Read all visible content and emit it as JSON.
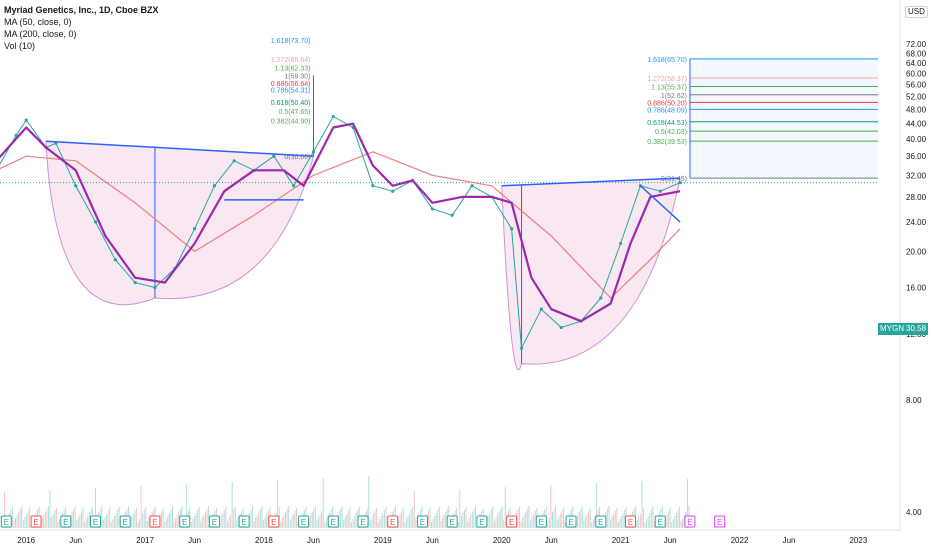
{
  "chart_data": {
    "type": "candlestick",
    "title": "Myriad Genetics, Inc., 1D, Cboe BZX",
    "indicators": [
      "MA (50, close, 0)",
      "MA (200, close, 0)",
      "Vol (10)"
    ],
    "currency": "USD",
    "symbol": "MYGN",
    "last_price": "30.58",
    "y_scale": "log",
    "y_ticks": [
      "4.00",
      "8.00",
      "12.00",
      "16.00",
      "20.00",
      "24.00",
      "28.00",
      "32.00",
      "36.00",
      "40.00",
      "44.00",
      "48.00",
      "52.00",
      "56.00",
      "60.00",
      "64.00",
      "68.00",
      "72.00"
    ],
    "x_ticks": [
      "2016",
      "Jun",
      "2017",
      "Jun",
      "2018",
      "Jun",
      "2019",
      "Jun",
      "2020",
      "Jun",
      "2021",
      "Jun",
      "2022",
      "Jun",
      "2023"
    ],
    "price_series": [
      {
        "date": "2015-10",
        "value": 33
      },
      {
        "date": "2015-12",
        "value": 41
      },
      {
        "date": "2016-01",
        "value": 45
      },
      {
        "date": "2016-03",
        "value": 38
      },
      {
        "date": "2016-04",
        "value": 39
      },
      {
        "date": "2016-06",
        "value": 30
      },
      {
        "date": "2016-08",
        "value": 24
      },
      {
        "date": "2016-10",
        "value": 19
      },
      {
        "date": "2016-12",
        "value": 16.5
      },
      {
        "date": "2017-02",
        "value": 16
      },
      {
        "date": "2017-04",
        "value": 18
      },
      {
        "date": "2017-06",
        "value": 23
      },
      {
        "date": "2017-08",
        "value": 30
      },
      {
        "date": "2017-10",
        "value": 35
      },
      {
        "date": "2017-12",
        "value": 33
      },
      {
        "date": "2018-02",
        "value": 36
      },
      {
        "date": "2018-04",
        "value": 30
      },
      {
        "date": "2018-06",
        "value": 37
      },
      {
        "date": "2018-08",
        "value": 46
      },
      {
        "date": "2018-10",
        "value": 43
      },
      {
        "date": "2018-12",
        "value": 30
      },
      {
        "date": "2019-02",
        "value": 29
      },
      {
        "date": "2019-04",
        "value": 31
      },
      {
        "date": "2019-06",
        "value": 26
      },
      {
        "date": "2019-08",
        "value": 25
      },
      {
        "date": "2019-10",
        "value": 30
      },
      {
        "date": "2019-12",
        "value": 28
      },
      {
        "date": "2020-02",
        "value": 23
      },
      {
        "date": "2020-03",
        "value": 11
      },
      {
        "date": "2020-05",
        "value": 14
      },
      {
        "date": "2020-07",
        "value": 12.5
      },
      {
        "date": "2020-09",
        "value": 13
      },
      {
        "date": "2020-11",
        "value": 15
      },
      {
        "date": "2021-01",
        "value": 21
      },
      {
        "date": "2021-03",
        "value": 30
      },
      {
        "date": "2021-05",
        "value": 29
      },
      {
        "date": "2021-07",
        "value": 30.58
      }
    ],
    "ma50_series": [
      {
        "date": "2015-10",
        "value": 35
      },
      {
        "date": "2016-01",
        "value": 43
      },
      {
        "date": "2016-03",
        "value": 38
      },
      {
        "date": "2016-06",
        "value": 33
      },
      {
        "date": "2016-09",
        "value": 22
      },
      {
        "date": "2016-12",
        "value": 17
      },
      {
        "date": "2017-03",
        "value": 16.5
      },
      {
        "date": "2017-06",
        "value": 21
      },
      {
        "date": "2017-09",
        "value": 29
      },
      {
        "date": "2017-12",
        "value": 33
      },
      {
        "date": "2018-03",
        "value": 33
      },
      {
        "date": "2018-05",
        "value": 30
      },
      {
        "date": "2018-08",
        "value": 43
      },
      {
        "date": "2018-10",
        "value": 44
      },
      {
        "date": "2018-12",
        "value": 34
      },
      {
        "date": "2019-02",
        "value": 30
      },
      {
        "date": "2019-04",
        "value": 31
      },
      {
        "date": "2019-06",
        "value": 27
      },
      {
        "date": "2019-09",
        "value": 28
      },
      {
        "date": "2019-12",
        "value": 28
      },
      {
        "date": "2020-02",
        "value": 27
      },
      {
        "date": "2020-04",
        "value": 17
      },
      {
        "date": "2020-06",
        "value": 14
      },
      {
        "date": "2020-09",
        "value": 13
      },
      {
        "date": "2020-12",
        "value": 14.5
      },
      {
        "date": "2021-02",
        "value": 21
      },
      {
        "date": "2021-04",
        "value": 28
      },
      {
        "date": "2021-07",
        "value": 29
      }
    ],
    "ma200_series": [
      {
        "date": "2015-10",
        "value": 33
      },
      {
        "date": "2016-01",
        "value": 36
      },
      {
        "date": "2016-06",
        "value": 35
      },
      {
        "date": "2016-12",
        "value": 27
      },
      {
        "date": "2017-06",
        "value": 20
      },
      {
        "date": "2017-12",
        "value": 25
      },
      {
        "date": "2018-06",
        "value": 32
      },
      {
        "date": "2018-12",
        "value": 37
      },
      {
        "date": "2019-06",
        "value": 32
      },
      {
        "date": "2019-12",
        "value": 30
      },
      {
        "date": "2020-06",
        "value": 22
      },
      {
        "date": "2020-12",
        "value": 15
      },
      {
        "date": "2021-04",
        "value": 19
      },
      {
        "date": "2021-07",
        "value": 23
      }
    ],
    "patterns": [
      {
        "name": "cup-and-handle-1",
        "neckline_left": {
          "date": "2016-03",
          "value": 39.5
        },
        "neckline_right": {
          "date": "2018-06",
          "value": 36
        },
        "cup_bottom": {
          "date": "2017-02",
          "value": 15
        },
        "handle_low": 27.5
      },
      {
        "name": "cup-and-handle-2",
        "neckline_left": {
          "date": "2020-01",
          "value": 30
        },
        "neckline_right": {
          "date": "2021-07",
          "value": 31.45
        },
        "cup_bottom": {
          "date": "2020-03",
          "value": 10
        }
      }
    ],
    "fib_levels_1": [
      {
        "label": "1.618(73.70)",
        "value": 73.7,
        "color": "#2196f3"
      },
      {
        "label": "1.272(65.64)",
        "value": 65.64,
        "color": "#f7a1a1"
      },
      {
        "label": "1.13(62.33)",
        "value": 62.33,
        "color": "#4caf50"
      },
      {
        "label": "1(59.30)",
        "value": 59.3,
        "color": "#787b86"
      },
      {
        "label": "0.886(56.64)",
        "value": 56.64,
        "color": "#f23645"
      },
      {
        "label": "0.786(54.31)",
        "value": 54.31,
        "color": "#2196f3"
      },
      {
        "label": "0.618(50.40)",
        "value": 50.4,
        "color": "#089981"
      },
      {
        "label": "0.5(47.65)",
        "value": 47.65,
        "color": "#4caf50"
      },
      {
        "label": "0.382(44.90)",
        "value": 44.9,
        "color": "#4caf50"
      },
      {
        "label": "0(36.00)",
        "value": 36.0,
        "color": "#787b86"
      }
    ],
    "fib_levels_2": [
      {
        "label": "1.618(65.70)",
        "value": 65.7,
        "color": "#2196f3"
      },
      {
        "label": "1.272(58.37)",
        "value": 58.37,
        "color": "#f7a1a1"
      },
      {
        "label": "1.13(55.37)",
        "value": 55.37,
        "color": "#4caf50"
      },
      {
        "label": "1(52.62)",
        "value": 52.62,
        "color": "#787b86"
      },
      {
        "label": "0.886(50.20)",
        "value": 50.2,
        "color": "#f23645"
      },
      {
        "label": "0.786(48.09)",
        "value": 48.09,
        "color": "#2196f3"
      },
      {
        "label": "0.618(44.53)",
        "value": 44.53,
        "color": "#089981"
      },
      {
        "label": "0.5(42.03)",
        "value": 42.03,
        "color": "#4caf50"
      },
      {
        "label": "0.382(39.53)",
        "value": 39.53,
        "color": "#4caf50"
      },
      {
        "label": "0(31.45)",
        "value": 31.45,
        "color": "#787b86"
      }
    ],
    "earnings_markers": [
      "2015-11",
      "2016-02",
      "2016-05",
      "2016-08",
      "2016-11",
      "2017-02",
      "2017-05",
      "2017-08",
      "2017-11",
      "2018-02",
      "2018-05",
      "2018-08",
      "2018-11",
      "2019-02",
      "2019-05",
      "2019-08",
      "2019-11",
      "2020-02",
      "2020-05",
      "2020-08",
      "2020-11",
      "2021-02",
      "2021-05",
      "2021-08",
      "2021-11"
    ],
    "earnings_letter": "E",
    "colors": {
      "up": "#26a69a",
      "down": "#ef5350",
      "ma50": "#9c27b0",
      "ma200": "#ef7d7d",
      "trend": "#2962ff",
      "cup_fill": "#f8e1ef",
      "fib_fill": "#eef5fd"
    }
  }
}
